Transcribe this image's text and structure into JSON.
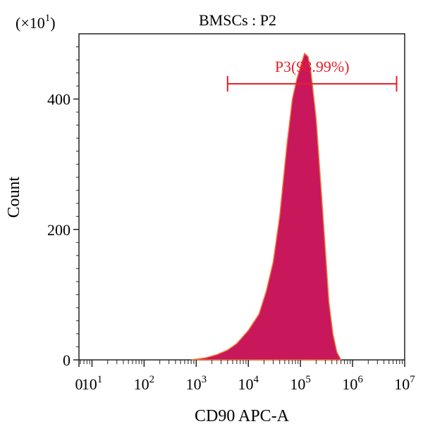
{
  "chart_data": {
    "type": "area",
    "title": "BMSCs : P2",
    "multiplier_label": "(×10",
    "multiplier_exp": "1",
    "multiplier_close": ")",
    "xlabel": "CD90 APC-A",
    "ylabel": "Count",
    "x_scale": "log",
    "xlim": [
      0,
      10000000
    ],
    "ylim": [
      0,
      500
    ],
    "y_ticks": [
      0,
      200,
      400
    ],
    "y_tick_labels": [
      "0",
      "200",
      "400"
    ],
    "x_tick_labels": [
      {
        "value": 0,
        "base": "0",
        "exp": ""
      },
      {
        "value": 10,
        "base": "10",
        "exp": "1"
      },
      {
        "value": 100,
        "base": "10",
        "exp": "2"
      },
      {
        "value": 1000,
        "base": "10",
        "exp": "3"
      },
      {
        "value": 10000,
        "base": "10",
        "exp": "4"
      },
      {
        "value": 100000,
        "base": "10",
        "exp": "5"
      },
      {
        "value": 1000000,
        "base": "10",
        "exp": "6"
      },
      {
        "value": 10000000,
        "base": "10",
        "exp": "7"
      }
    ],
    "gate": {
      "label": "P3(98.99%)",
      "x_start": 4000,
      "x_end": 7000000,
      "color": "#e8202a"
    },
    "series": [
      {
        "fill_color": "#c8175a",
        "outline_color": "#f07a3a",
        "points": [
          [
            800,
            0
          ],
          [
            1500,
            3
          ],
          [
            2500,
            8
          ],
          [
            4000,
            15
          ],
          [
            6000,
            25
          ],
          [
            10000,
            45
          ],
          [
            16000,
            70
          ],
          [
            22000,
            105
          ],
          [
            30000,
            150
          ],
          [
            40000,
            220
          ],
          [
            55000,
            330
          ],
          [
            70000,
            400
          ],
          [
            85000,
            430
          ],
          [
            100000,
            450
          ],
          [
            120000,
            470
          ],
          [
            140000,
            465
          ],
          [
            160000,
            440
          ],
          [
            200000,
            370
          ],
          [
            250000,
            260
          ],
          [
            300000,
            170
          ],
          [
            350000,
            90
          ],
          [
            420000,
            40
          ],
          [
            500000,
            12
          ],
          [
            600000,
            0
          ]
        ]
      },
      {
        "fill_color": "#4a4aa8",
        "points": [
          [
            1200,
            0
          ],
          [
            2000,
            4
          ],
          [
            3000,
            8
          ],
          [
            4000,
            6
          ],
          [
            5000,
            0
          ]
        ]
      }
    ]
  }
}
